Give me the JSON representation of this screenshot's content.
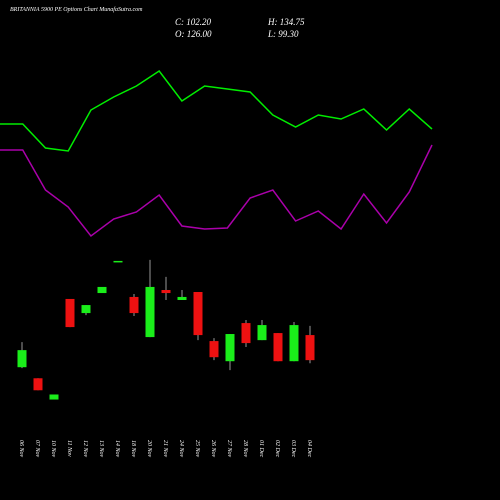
{
  "header": {
    "title": "BRITANNIA 5900  PE Options  Chart MunafaSutra.com",
    "close": "C: 102.20",
    "open": "O: 126.00",
    "high": "H: 134.75",
    "low": "L: 99.30"
  },
  "chart_data": [
    {
      "type": "candlestick",
      "categories": [
        "06 Nov",
        "07 Nov",
        "10 Nov",
        "11 Nov",
        "12 Nov",
        "13 Nov",
        "14 Nov",
        "18 Nov",
        "20 Nov",
        "21 Nov",
        "24 Nov",
        "25 Nov",
        "26 Nov",
        "27 Nov",
        "28 Nov",
        "01 Dec",
        "02 Dec",
        "03 Dec",
        "04 Dec"
      ],
      "open": [
        95.5,
        85.0,
        64.8,
        160.3,
        146.9,
        165.9,
        196.4,
        162.2,
        124.1,
        168.8,
        159.3,
        166.9,
        120.3,
        101.2,
        137.4,
        121.2,
        127.9,
        101.2,
        126.0
      ],
      "high": [
        119.3,
        85.0,
        69.6,
        160.3,
        154.5,
        171.7,
        196.4,
        165.0,
        197.4,
        181.2,
        168.8,
        166.9,
        123.1,
        127.0,
        140.3,
        140.3,
        127.9,
        138.4,
        134.75
      ],
      "low": [
        94.6,
        73.6,
        64.8,
        133.6,
        145.0,
        165.9,
        196.4,
        144.1,
        124.1,
        159.3,
        159.3,
        121.2,
        102.2,
        92.7,
        114.7,
        121.2,
        101.2,
        101.2,
        99.3
      ],
      "close": [
        111.7,
        73.6,
        69.6,
        133.6,
        154.5,
        171.7,
        196.4,
        146.9,
        171.7,
        165.9,
        162.2,
        126.0,
        105.0,
        127.0,
        118.4,
        135.5,
        101.2,
        135.5,
        102.2
      ],
      "up_color": "#1aee1a",
      "down_color": "#ee1111",
      "wick_color": "#999999",
      "ylim": [
        60,
        210
      ]
    },
    {
      "type": "line",
      "series": [
        {
          "color": "#00ee00",
          "values": [
            126,
            126,
            102,
            99,
            140,
            153,
            164,
            179,
            149,
            164,
            161,
            158,
            135,
            123,
            135,
            131,
            141,
            120,
            141,
            121
          ]
        },
        {
          "color": "#aa00aa",
          "values": [
            100,
            100,
            60,
            43,
            14,
            31,
            38,
            55,
            24,
            21,
            22,
            52,
            60,
            29,
            39,
            21,
            56,
            27,
            58,
            105
          ]
        }
      ],
      "ylim": [
        0,
        200
      ]
    }
  ]
}
